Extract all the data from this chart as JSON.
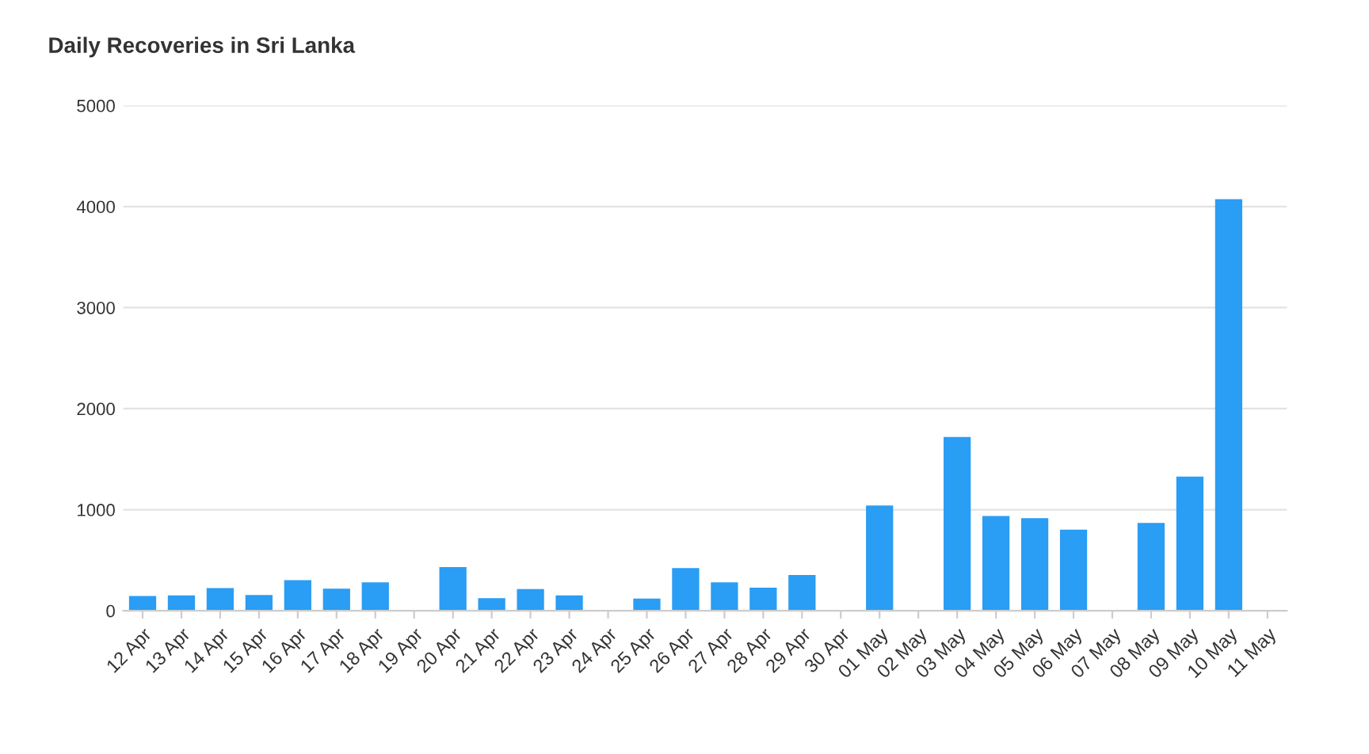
{
  "chart_data": {
    "type": "bar",
    "title": "Daily Recoveries in Sri Lanka",
    "categories": [
      "12 Apr",
      "13 Apr",
      "14 Apr",
      "15 Apr",
      "16 Apr",
      "17 Apr",
      "18 Apr",
      "19 Apr",
      "20 Apr",
      "21 Apr",
      "22 Apr",
      "23 Apr",
      "24 Apr",
      "25 Apr",
      "26 Apr",
      "27 Apr",
      "28 Apr",
      "29 Apr",
      "30 Apr",
      "01 May",
      "02 May",
      "03 May",
      "04 May",
      "05 May",
      "06 May",
      "07 May",
      "08 May",
      "09 May",
      "10 May",
      "11 May"
    ],
    "values": [
      146,
      151,
      224,
      156,
      302,
      219,
      281,
      0,
      432,
      125,
      214,
      151,
      0,
      120,
      422,
      281,
      229,
      354,
      0,
      1042,
      0,
      1719,
      938,
      917,
      802,
      0,
      870,
      1328,
      4073,
      0
    ],
    "color": "#2a9df4",
    "ylim": [
      0,
      5000
    ],
    "yticks": [
      0,
      1000,
      2000,
      3000,
      4000,
      5000
    ],
    "grid": "y"
  }
}
